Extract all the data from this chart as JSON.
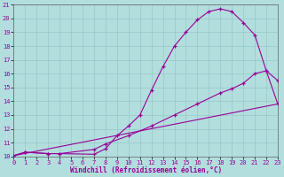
{
  "xlabel": "Windchill (Refroidissement éolien,°C)",
  "bg_color": "#b2dede",
  "line_color": "#990099",
  "grid_color": "#96c8c8",
  "xlim": [
    0,
    23
  ],
  "ylim": [
    10,
    21
  ],
  "hump_x": [
    0,
    1,
    3,
    4,
    7,
    8,
    9,
    10,
    11,
    12,
    13,
    14,
    15,
    16,
    17,
    18,
    19,
    20,
    21,
    22,
    23
  ],
  "hump_y": [
    10.05,
    10.3,
    10.2,
    10.2,
    10.15,
    10.55,
    11.5,
    12.2,
    13.0,
    14.8,
    16.5,
    18.0,
    19.0,
    19.9,
    20.5,
    20.7,
    20.5,
    19.7,
    18.8,
    16.2,
    15.5
  ],
  "line2_x": [
    0,
    1,
    3,
    4,
    7,
    8,
    10,
    12,
    14,
    16,
    18,
    19,
    20,
    21,
    22,
    23
  ],
  "line2_y": [
    10.05,
    10.3,
    10.2,
    10.2,
    10.5,
    10.9,
    11.5,
    12.2,
    13.0,
    13.8,
    14.6,
    14.9,
    15.3,
    16.0,
    16.2,
    13.8
  ],
  "line3_x": [
    0,
    23
  ],
  "line3_y": [
    10.05,
    13.8
  ]
}
